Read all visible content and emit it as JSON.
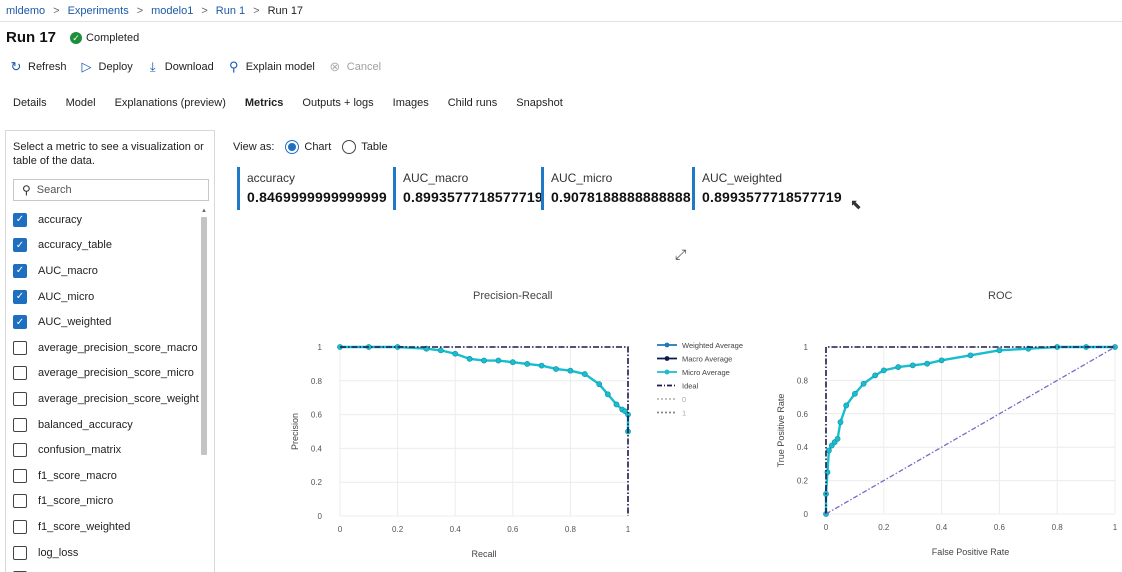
{
  "breadcrumb": {
    "items": [
      "mldemo",
      "Experiments",
      "modelo1",
      "Run 1"
    ],
    "current": "Run 17",
    "separator": ">"
  },
  "header": {
    "title": "Run 17",
    "status": "Completed",
    "status_color": "#1d8f3c"
  },
  "toolbar": {
    "refresh": "Refresh",
    "deploy": "Deploy",
    "download": "Download",
    "explain": "Explain model",
    "cancel": "Cancel"
  },
  "tabs": [
    "Details",
    "Model",
    "Explanations (preview)",
    "Metrics",
    "Outputs + logs",
    "Images",
    "Child runs",
    "Snapshot"
  ],
  "active_tab": "Metrics",
  "sidebar": {
    "hint": "Select a metric to see a visualization or table of the data.",
    "search_placeholder": "Search",
    "metrics": [
      {
        "label": "accuracy",
        "checked": true
      },
      {
        "label": "accuracy_table",
        "checked": true
      },
      {
        "label": "AUC_macro",
        "checked": true
      },
      {
        "label": "AUC_micro",
        "checked": true
      },
      {
        "label": "AUC_weighted",
        "checked": true
      },
      {
        "label": "average_precision_score_macro",
        "checked": false
      },
      {
        "label": "average_precision_score_micro",
        "checked": false
      },
      {
        "label": "average_precision_score_weighted",
        "checked": false
      },
      {
        "label": "balanced_accuracy",
        "checked": false
      },
      {
        "label": "confusion_matrix",
        "checked": false
      },
      {
        "label": "f1_score_macro",
        "checked": false
      },
      {
        "label": "f1_score_micro",
        "checked": false
      },
      {
        "label": "f1_score_weighted",
        "checked": false
      },
      {
        "label": "log_loss",
        "checked": false
      },
      {
        "label": "",
        "checked": false
      }
    ]
  },
  "view_as": {
    "label": "View as:",
    "options": [
      "Chart",
      "Table"
    ],
    "selected": "Chart"
  },
  "metric_cards": [
    {
      "label": "accuracy",
      "value": "0.8469999999999999"
    },
    {
      "label": "AUC_macro",
      "value": "0.8993577718577719"
    },
    {
      "label": "AUC_micro",
      "value": "0.9078188888888888"
    },
    {
      "label": "AUC_weighted",
      "value": "0.8993577718577719"
    }
  ],
  "colors": {
    "accent": "#1f78c8",
    "checkbox": "#1f6fc0",
    "link": "#1a5aa8",
    "weighted": "#1f77b4",
    "macro": "#0d1b4c",
    "micro": "#17becf",
    "ideal": "#1a1a4a",
    "diagonal": "#7b68c8"
  },
  "chart_data": [
    {
      "type": "line",
      "title": "Precision-Recall",
      "xlabel": "Recall",
      "ylabel": "Precision",
      "xlim": [
        0,
        1
      ],
      "ylim": [
        0,
        1
      ],
      "xticks": [
        "0",
        "0.2",
        "0.4",
        "0.6",
        "0.8",
        "1"
      ],
      "yticks": [
        "0",
        "0.2",
        "0.4",
        "0.6",
        "0.8",
        "1"
      ],
      "legend": [
        "Weighted Average",
        "Macro Average",
        "Micro Average",
        "Ideal",
        "0",
        "1"
      ],
      "legend_position": "right",
      "series": [
        {
          "name": "Micro Average",
          "x": [
            0,
            0.1,
            0.2,
            0.3,
            0.35,
            0.4,
            0.45,
            0.5,
            0.55,
            0.6,
            0.65,
            0.7,
            0.75,
            0.8,
            0.85,
            0.9,
            0.93,
            0.96,
            0.98,
            0.99,
            1,
            1
          ],
          "y": [
            1,
            1,
            1,
            0.99,
            0.98,
            0.96,
            0.93,
            0.92,
            0.92,
            0.91,
            0.9,
            0.89,
            0.87,
            0.86,
            0.84,
            0.78,
            0.72,
            0.66,
            0.63,
            0.62,
            0.6,
            0.5
          ]
        },
        {
          "name": "Ideal",
          "x": [
            0,
            1,
            1
          ],
          "y": [
            1,
            1,
            0
          ]
        }
      ]
    },
    {
      "type": "line",
      "title": "ROC",
      "xlabel": "False Positive Rate",
      "ylabel": "True Positive Rate",
      "xlim": [
        0,
        1
      ],
      "ylim": [
        0,
        1
      ],
      "xticks": [
        "0",
        "0.2",
        "0.4",
        "0.6",
        "0.8",
        "1"
      ],
      "yticks": [
        "0",
        "0.2",
        "0.4",
        "0.6",
        "0.8",
        "1"
      ],
      "series": [
        {
          "name": "Micro Average",
          "x": [
            0,
            0,
            0.005,
            0.01,
            0.02,
            0.03,
            0.04,
            0.05,
            0.07,
            0.1,
            0.13,
            0.17,
            0.2,
            0.25,
            0.3,
            0.35,
            0.4,
            0.5,
            0.6,
            0.7,
            0.8,
            0.9,
            1
          ],
          "y": [
            0,
            0.12,
            0.25,
            0.38,
            0.41,
            0.43,
            0.45,
            0.55,
            0.65,
            0.72,
            0.78,
            0.83,
            0.86,
            0.88,
            0.89,
            0.9,
            0.92,
            0.95,
            0.98,
            0.99,
            1,
            1,
            1
          ]
        },
        {
          "name": "Ideal",
          "x": [
            0,
            0,
            1
          ],
          "y": [
            0,
            1,
            1
          ]
        },
        {
          "name": "",
          "x": [
            0,
            1
          ],
          "y": [
            0,
            1
          ]
        }
      ]
    }
  ]
}
